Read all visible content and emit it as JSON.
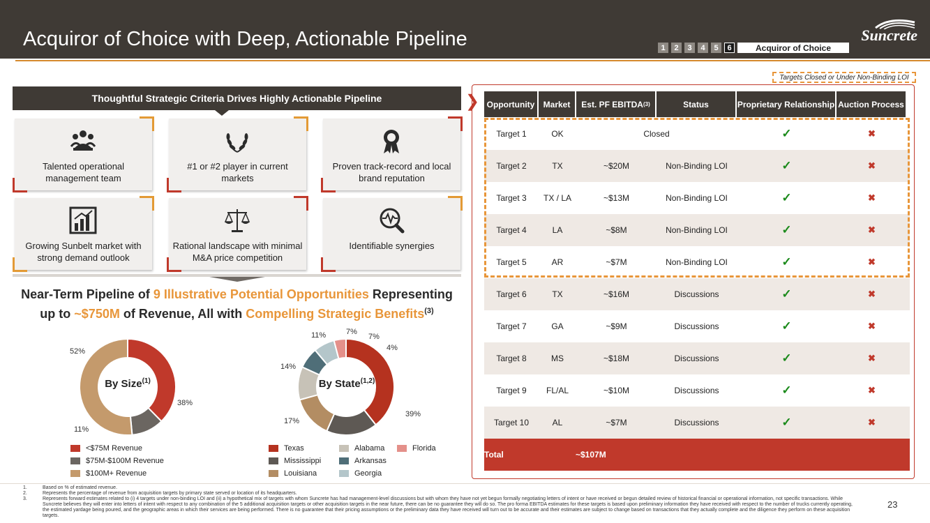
{
  "header": {
    "title": "Acquiror of Choice with Deep, Actionable Pipeline",
    "logo_text": "Suncrete",
    "nav": {
      "pages": [
        "1",
        "2",
        "3",
        "4",
        "5",
        "6"
      ],
      "active": "6",
      "label": "Acquiror of Choice"
    }
  },
  "criteria": {
    "heading": "Thoughtful Strategic Criteria Drives Highly Actionable Pipeline",
    "tiles": [
      {
        "label": "Talented operational management team",
        "icon": "team-icon"
      },
      {
        "label": "#1 or #2 player in current markets",
        "icon": "laurel-icon"
      },
      {
        "label": "Proven track-record and local brand reputation",
        "icon": "award-ribbon-icon"
      },
      {
        "label": "Growing Sunbelt market with strong demand outlook",
        "icon": "bar-chart-icon"
      },
      {
        "label": "Rational landscape with minimal M&A price competition",
        "icon": "scales-icon"
      },
      {
        "label": "Identifiable synergies",
        "icon": "magnifier-pulse-icon"
      }
    ]
  },
  "pipeline": {
    "t1": "Near-Term Pipeline of ",
    "t2": "9 Illustrative Potential Opportunities",
    "t3": " Representing  up to ",
    "t4": "~$750M",
    "t5": " of Revenue, All with ",
    "t6": "Compelling Strategic Benefits",
    "t7": "(3)"
  },
  "chart_data": [
    {
      "type": "pie",
      "title": "By Size",
      "title_sup": "(1)",
      "categories": [
        "<$75M Revenue",
        "$75M-$100M Revenue",
        "$100M+ Revenue"
      ],
      "values": [
        38,
        11,
        52
      ],
      "labels": [
        "38%",
        "11%",
        "52%"
      ],
      "colors": [
        "#c0392b",
        "#6b6661",
        "#c49a6c"
      ]
    },
    {
      "type": "pie",
      "title": "By State",
      "title_sup": "(1,2)",
      "categories": [
        "Texas",
        "Mississippi",
        "Louisiana",
        "Alabama",
        "Arkansas",
        "Georgia",
        "Florida"
      ],
      "values": [
        39,
        17,
        14,
        11,
        7,
        7,
        4
      ],
      "labels": [
        "39%",
        "17%",
        "14%",
        "11%",
        "7%",
        "7%",
        "4%"
      ],
      "colors": [
        "#b5321f",
        "#5e5954",
        "#b38d63",
        "#c7c2b7",
        "#4f6e78",
        "#b4c6ca",
        "#e4908a"
      ]
    }
  ],
  "table": {
    "closed_legend": "Targets Closed or Under Non-Binding LOI",
    "headers": [
      "Opportunity",
      "Market",
      "Est. PF EBITDA",
      "Status",
      "Proprietary Relationship",
      "Auction Process"
    ],
    "ebitda_sup": "(3)",
    "rows": [
      {
        "opportunity": "Target 1",
        "market": "OK",
        "ebitda": "",
        "status": "Closed"
      },
      {
        "opportunity": "Target 2",
        "market": "TX",
        "ebitda": "~$20M",
        "status": "Non-Binding LOI"
      },
      {
        "opportunity": "Target 3",
        "market": "TX / LA",
        "ebitda": "~$13M",
        "status": "Non-Binding LOI"
      },
      {
        "opportunity": "Target 4",
        "market": "LA",
        "ebitda": "~$8M",
        "status": "Non-Binding LOI"
      },
      {
        "opportunity": "Target 5",
        "market": "AR",
        "ebitda": "~$7M",
        "status": "Non-Binding LOI"
      },
      {
        "opportunity": "Target 6",
        "market": "TX",
        "ebitda": "~$16M",
        "status": "Discussions"
      },
      {
        "opportunity": "Target 7",
        "market": "GA",
        "ebitda": "~$9M",
        "status": "Discussions"
      },
      {
        "opportunity": "Target 8",
        "market": "MS",
        "ebitda": "~$18M",
        "status": "Discussions"
      },
      {
        "opportunity": "Target 9",
        "market": "FL/AL",
        "ebitda": "~$10M",
        "status": "Discussions"
      },
      {
        "opportunity": "Target 10",
        "market": "AL",
        "ebitda": "~$7M",
        "status": "Discussions"
      }
    ],
    "check": "✓",
    "cross": "✖",
    "total_label": "Total",
    "total_value": "~$107M"
  },
  "footnotes": [
    {
      "n": "1.",
      "text": "Based on % of estimated revenue."
    },
    {
      "n": "2.",
      "text": "Represents the percentage of revenue from acquisition targets by primary state served or location of its headquarters."
    },
    {
      "n": "3.",
      "text": "Represents forward estimates related to (i) 4 targets under non-binding LOI and (ii) a hypothetical mix of targets with whom Suncrete has had management-level discussions but with whom they have not yet begun formally negotiating letters of intent or have received or begun detailed review of historical financial or operational information, not specific transactions. While Suncrete believes they will enter into letters of intent with respect to any combination of the 5 additional acquisition targets or other acquisition targets in the near future, there can be no guarantee they will do so. The pro forma EBITDA estimates for these targets is based upon preliminary information they have received with respect to the number of trucks currently operating, the estimated yardage being poured, and the geographic areas in which their services are being performed. There is no guarantee that their pricing assumptions or the preliminary data they have received will turn out to be accurate and their estimates are subject to change based on transactions that they actually complete and the diligence they perform on these acquisition targets."
    }
  ],
  "page_number": "23"
}
